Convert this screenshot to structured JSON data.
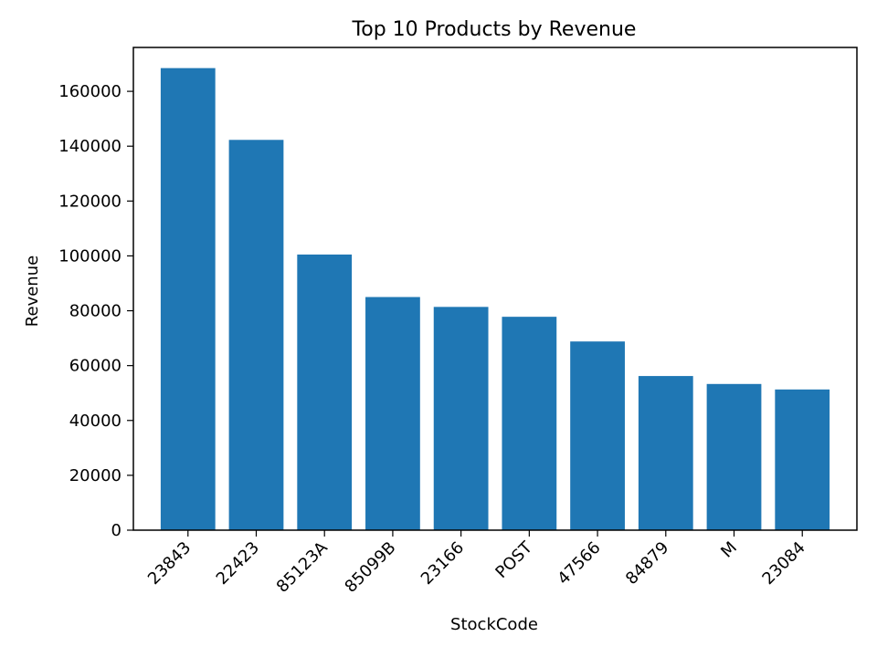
{
  "chart_data": {
    "type": "bar",
    "title": "Top 10 Products by Revenue",
    "xlabel": "StockCode",
    "ylabel": "Revenue",
    "categories": [
      "23843",
      "22423",
      "85123A",
      "85099B",
      "23166",
      "POST",
      "47566",
      "84879",
      "M",
      "23084"
    ],
    "values": [
      168470,
      142300,
      100500,
      85000,
      81400,
      77800,
      68800,
      56200,
      53300,
      51300
    ],
    "ylim": [
      0,
      176000
    ],
    "yticks": [
      0,
      20000,
      40000,
      60000,
      80000,
      100000,
      120000,
      140000,
      160000
    ],
    "ytick_labels": [
      "0",
      "20000",
      "40000",
      "60000",
      "80000",
      "100000",
      "120000",
      "140000",
      "160000"
    ],
    "grid": false,
    "colors": {
      "bar": "#1f77b4",
      "axis": "#000000",
      "background": "#ffffff"
    }
  }
}
